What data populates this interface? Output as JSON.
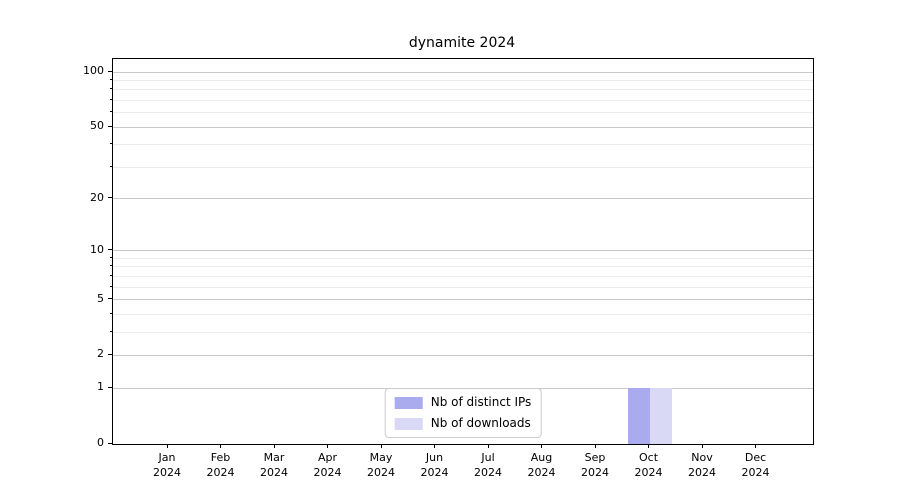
{
  "title": "dynamite 2024",
  "chart_data": {
    "type": "bar",
    "title": "dynamite 2024",
    "categories": [
      "Jan 2024",
      "Feb 2024",
      "Mar 2024",
      "Apr 2024",
      "May 2024",
      "Jun 2024",
      "Jul 2024",
      "Aug 2024",
      "Sep 2024",
      "Oct 2024",
      "Nov 2024",
      "Dec 2024"
    ],
    "series": [
      {
        "name": "Nb of distinct IPs",
        "color": "#aaaaee",
        "values": [
          0,
          0,
          0,
          0,
          0,
          0,
          0,
          0,
          0,
          1,
          0,
          0
        ]
      },
      {
        "name": "Nb of downloads",
        "color": "#d9d9f6",
        "values": [
          0,
          0,
          0,
          0,
          0,
          0,
          0,
          0,
          0,
          1,
          0,
          0
        ]
      }
    ],
    "xlabel": "",
    "ylabel": "",
    "yscale": "log1p",
    "ylim": [
      0,
      118
    ],
    "yticks_major": [
      0,
      1,
      2,
      5,
      10,
      20,
      50,
      100
    ],
    "yticks_minor": [
      3,
      4,
      6,
      7,
      8,
      9,
      30,
      40,
      60,
      70,
      80,
      90
    ],
    "grid": true,
    "legend_position": "lower center"
  },
  "legend": {
    "items": [
      {
        "label": "Nb of distinct IPs",
        "color": "#aaaaee"
      },
      {
        "label": "Nb of downloads",
        "color": "#d9d9f6"
      }
    ]
  },
  "colors": {
    "bar_distinct_ips": "#aaaaee",
    "bar_downloads": "#d9d9f6",
    "grid_major": "#c8c8c8",
    "grid_minor": "#ebebeb",
    "spine": "#000000",
    "text": "#000000",
    "legend_border": "#cccccc"
  }
}
